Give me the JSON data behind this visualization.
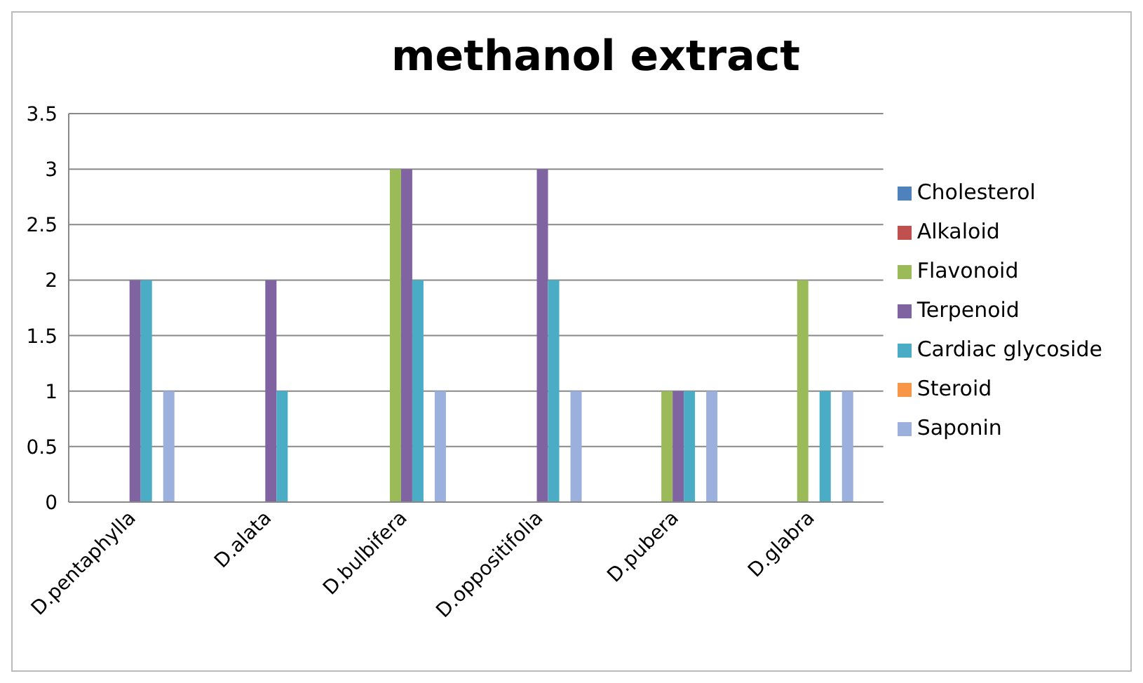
{
  "chart_data": {
    "type": "bar",
    "title": "methanol extract",
    "categories": [
      "D.pentaphylla",
      "D.alata",
      "D.bulbifera",
      "D.oppositifolia",
      "D.pubera",
      "D.glabra"
    ],
    "series": [
      {
        "name": "Cholesterol",
        "color": "#4f81bd",
        "values": [
          0,
          0,
          0,
          0,
          0,
          0
        ]
      },
      {
        "name": "Alkaloid",
        "color": "#c0504d",
        "values": [
          0,
          0,
          0,
          0,
          0,
          0
        ]
      },
      {
        "name": "Flavonoid",
        "color": "#9bbb59",
        "values": [
          0,
          0,
          3,
          0,
          1,
          2
        ]
      },
      {
        "name": "Terpenoid",
        "color": "#8064a2",
        "values": [
          2,
          2,
          3,
          3,
          1,
          0
        ]
      },
      {
        "name": "Cardiac glycoside",
        "color": "#4bacc6",
        "values": [
          2,
          1,
          2,
          2,
          1,
          1
        ]
      },
      {
        "name": "Steroid",
        "color": "#f79646",
        "values": [
          0,
          0,
          0,
          0,
          0,
          0
        ]
      },
      {
        "name": "Saponin",
        "color": "#9bb0dc",
        "values": [
          1,
          0,
          1,
          1,
          1,
          1
        ]
      }
    ],
    "ylim": [
      0,
      3.5
    ],
    "yticks": [
      0,
      0.5,
      1,
      1.5,
      2,
      2.5,
      3,
      3.5
    ],
    "grid": "y",
    "legend": "right"
  }
}
